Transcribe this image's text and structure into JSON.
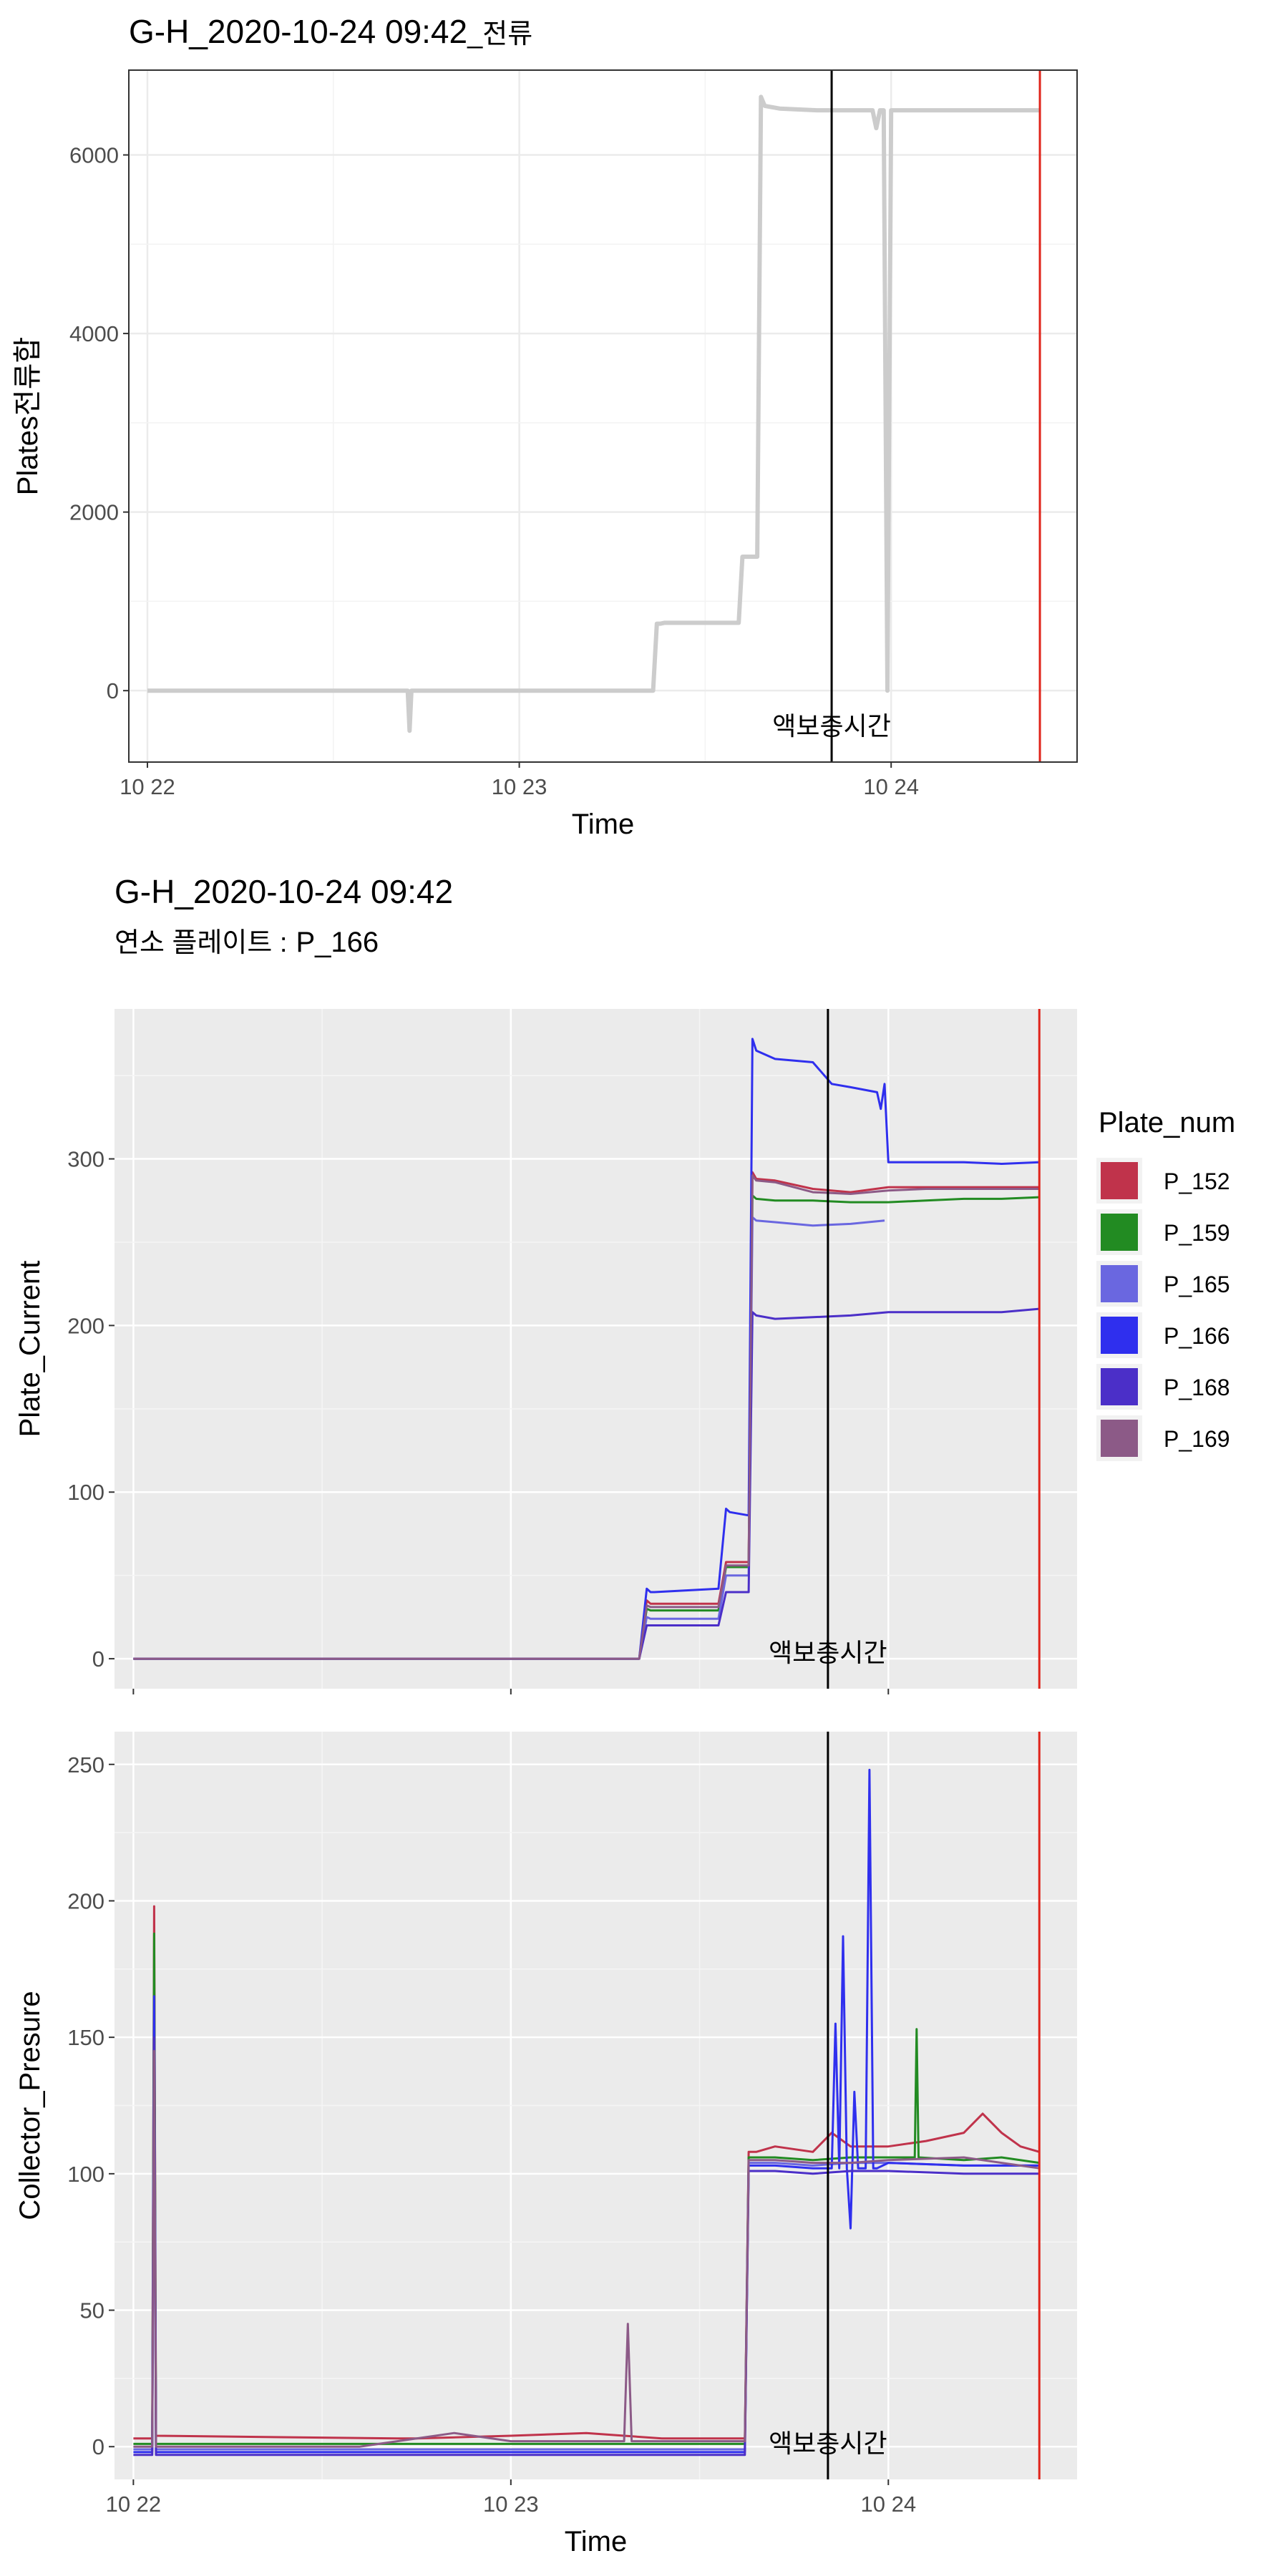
{
  "top_title": {
    "main": "G-H_2020-10-24 09:42",
    "suffix": "_전류"
  },
  "bottom_title": "G-H_2020-10-24 09:42",
  "subtitle": {
    "label": "연소 플레이트 :",
    "value": "P_166"
  },
  "legend": {
    "title": "Plate_num",
    "items": [
      {
        "name": "P_152",
        "color": "#C0334B"
      },
      {
        "name": "P_159",
        "color": "#228B22"
      },
      {
        "name": "P_165",
        "color": "#6A67E0"
      },
      {
        "name": "P_166",
        "color": "#2F2FEE"
      },
      {
        "name": "P_168",
        "color": "#4B2FC8"
      },
      {
        "name": "P_169",
        "color": "#8C5A87"
      }
    ]
  },
  "vline_colors": {
    "marker": "#000000",
    "current": "#E0241B"
  },
  "chart_data": [
    {
      "type": "line",
      "title": "G-H_2020-10-24 09:42_전류",
      "xlabel": "Time",
      "ylabel": "Plates전류합",
      "x_ticks": [
        "10 22",
        "10 23",
        "10 24"
      ],
      "y_ticks": [
        "0",
        "2000",
        "4000",
        "6000"
      ],
      "xlim": [
        -0.05,
        2.5
      ],
      "ylim": [
        -800,
        6950
      ],
      "background": "white",
      "grid": true,
      "series": [
        {
          "color": "#CCCCCC",
          "x": [
            0.0,
            0.7,
            0.705,
            0.71,
            0.715,
            1.36,
            1.37,
            1.38,
            1.39,
            1.59,
            1.6,
            1.61,
            1.64,
            1.65,
            1.66,
            1.7,
            1.8,
            1.85,
            1.9,
            1.95,
            1.96,
            1.97,
            1.975,
            1.98,
            1.99,
            2.0,
            2.05,
            2.1,
            2.15,
            2.2,
            2.3,
            2.4
          ],
          "y": [
            0,
            0,
            -450,
            0,
            0,
            0,
            750,
            750,
            760,
            760,
            1500,
            1500,
            1500,
            6650,
            6550,
            6520,
            6500,
            6500,
            6500,
            6500,
            6300,
            6500,
            6500,
            6500,
            0,
            6500,
            6500,
            6500,
            6500,
            6500,
            6500,
            6500
          ]
        }
      ],
      "vlines": [
        {
          "x": 1.84,
          "label": "액보충시간",
          "color": "#000000"
        },
        {
          "x": 2.4,
          "color": "#E0241B"
        }
      ]
    },
    {
      "type": "line",
      "xlabel": "",
      "ylabel": "Plate_Current",
      "x_ticks": [],
      "y_ticks": [
        "0",
        "100",
        "200",
        "300"
      ],
      "xlim": [
        -0.05,
        2.5
      ],
      "ylim": [
        -18,
        390
      ],
      "background": "grey92",
      "grid": true,
      "legend_position": "right",
      "series": [
        {
          "name": "P_152",
          "x": [
            0,
            1.34,
            1.36,
            1.37,
            1.38,
            1.55,
            1.57,
            1.58,
            1.63,
            1.64,
            1.65,
            1.7,
            1.8,
            1.9,
            2.0,
            2.1,
            2.2,
            2.3,
            2.4
          ],
          "y": [
            0,
            0,
            35,
            33,
            33,
            33,
            58,
            58,
            58,
            292,
            288,
            287,
            282,
            280,
            283,
            283,
            283,
            283,
            283
          ]
        },
        {
          "name": "P_159",
          "x": [
            0,
            1.34,
            1.36,
            1.37,
            1.38,
            1.55,
            1.57,
            1.58,
            1.63,
            1.64,
            1.65,
            1.7,
            1.8,
            1.9,
            2.0,
            2.1,
            2.2,
            2.3,
            2.4
          ],
          "y": [
            0,
            0,
            30,
            29,
            29,
            29,
            55,
            55,
            55,
            278,
            276,
            275,
            275,
            274,
            274,
            275,
            276,
            276,
            277
          ]
        },
        {
          "name": "P_165",
          "x": [
            0,
            1.34,
            1.36,
            1.37,
            1.38,
            1.55,
            1.57,
            1.58,
            1.63,
            1.64,
            1.65,
            1.7,
            1.8,
            1.9,
            1.99
          ],
          "y": [
            0,
            0,
            25,
            24,
            24,
            24,
            50,
            50,
            50,
            265,
            263,
            262,
            260,
            261,
            263
          ]
        },
        {
          "name": "P_166",
          "x": [
            0,
            1.34,
            1.36,
            1.37,
            1.38,
            1.55,
            1.57,
            1.58,
            1.63,
            1.64,
            1.65,
            1.7,
            1.8,
            1.85,
            1.9,
            1.97,
            1.98,
            1.99,
            2.0,
            2.1,
            2.2,
            2.3,
            2.4
          ],
          "y": [
            0,
            0,
            42,
            40,
            40,
            42,
            90,
            88,
            86,
            372,
            365,
            360,
            358,
            345,
            343,
            340,
            330,
            345,
            298,
            298,
            298,
            297,
            298
          ]
        },
        {
          "name": "P_168",
          "x": [
            0,
            1.34,
            1.36,
            1.37,
            1.38,
            1.55,
            1.57,
            1.58,
            1.63,
            1.64,
            1.65,
            1.7,
            1.8,
            1.9,
            2.0,
            2.1,
            2.2,
            2.3,
            2.4
          ],
          "y": [
            0,
            0,
            20,
            20,
            20,
            20,
            40,
            40,
            40,
            208,
            206,
            204,
            205,
            206,
            208,
            208,
            208,
            208,
            210
          ]
        },
        {
          "name": "P_169",
          "x": [
            0,
            1.34,
            1.36,
            1.37,
            1.38,
            1.55,
            1.57,
            1.58,
            1.63,
            1.64,
            1.65,
            1.7,
            1.8,
            1.9,
            2.0,
            2.1,
            2.2,
            2.3,
            2.4
          ],
          "y": [
            0,
            0,
            32,
            31,
            31,
            31,
            56,
            56,
            56,
            290,
            287,
            286,
            280,
            279,
            281,
            282,
            282,
            282,
            282
          ]
        }
      ],
      "vlines": [
        {
          "x": 1.84,
          "label": "액보충시간",
          "color": "#000000"
        },
        {
          "x": 2.4,
          "color": "#E0241B"
        }
      ]
    },
    {
      "type": "line",
      "xlabel": "Time",
      "ylabel": "Collector_Presure",
      "x_ticks": [
        "10 22",
        "10 23",
        "10 24"
      ],
      "y_ticks": [
        "0",
        "50",
        "100",
        "150",
        "200",
        "250"
      ],
      "xlim": [
        -0.05,
        2.5
      ],
      "ylim": [
        -12,
        262
      ],
      "background": "grey92",
      "grid": true,
      "series": [
        {
          "name": "P_152",
          "x": [
            0,
            0.05,
            0.055,
            0.06,
            0.7,
            0.75,
            1.0,
            1.2,
            1.3,
            1.4,
            1.5,
            1.62,
            1.63,
            1.65,
            1.7,
            1.8,
            1.85,
            1.9,
            2.0,
            2.1,
            2.2,
            2.25,
            2.3,
            2.35,
            2.4
          ],
          "y": [
            3,
            3,
            198,
            4,
            3,
            3,
            4,
            5,
            4,
            3,
            3,
            3,
            108,
            108,
            110,
            108,
            115,
            110,
            110,
            112,
            115,
            122,
            115,
            110,
            108
          ]
        },
        {
          "name": "P_159",
          "x": [
            0,
            0.05,
            0.055,
            0.06,
            1.0,
            1.5,
            1.62,
            1.63,
            1.7,
            1.8,
            1.9,
            2.0,
            2.07,
            2.075,
            2.08,
            2.2,
            2.3,
            2.4
          ],
          "y": [
            1,
            1,
            188,
            1,
            1,
            1,
            1,
            106,
            106,
            105,
            106,
            106,
            106,
            153,
            106,
            105,
            106,
            104
          ]
        },
        {
          "name": "P_165",
          "x": [
            0,
            0.05,
            0.055,
            0.06,
            1.0,
            1.5,
            1.62,
            1.63,
            1.7,
            1.8,
            1.9,
            2.0,
            2.2,
            2.4
          ],
          "y": [
            -1,
            -1,
            160,
            -1,
            -1,
            -1,
            -1,
            104,
            104,
            103,
            104,
            104,
            103,
            103
          ]
        },
        {
          "name": "P_166",
          "x": [
            0,
            0.05,
            0.055,
            0.06,
            1.0,
            1.5,
            1.62,
            1.63,
            1.7,
            1.8,
            1.85,
            1.86,
            1.87,
            1.88,
            1.89,
            1.9,
            1.91,
            1.92,
            1.93,
            1.94,
            1.95,
            1.96,
            1.97,
            2.0,
            2.2,
            2.4
          ],
          "y": [
            -2,
            -2,
            165,
            -2,
            -2,
            -2,
            -2,
            103,
            103,
            102,
            102,
            155,
            102,
            187,
            102,
            80,
            130,
            102,
            102,
            102,
            248,
            102,
            102,
            104,
            103,
            103
          ]
        },
        {
          "name": "P_168",
          "x": [
            0,
            0.05,
            0.055,
            0.06,
            1.0,
            1.5,
            1.62,
            1.63,
            1.7,
            1.8,
            1.9,
            2.0,
            2.2,
            2.4
          ],
          "y": [
            -3,
            -3,
            150,
            -3,
            -3,
            -3,
            -3,
            101,
            101,
            100,
            101,
            101,
            100,
            100
          ]
        },
        {
          "name": "P_169",
          "x": [
            0,
            0.05,
            0.055,
            0.06,
            0.6,
            0.85,
            1.0,
            1.3,
            1.31,
            1.32,
            1.5,
            1.62,
            1.63,
            1.7,
            1.8,
            1.9,
            2.0,
            2.2,
            2.3,
            2.4
          ],
          "y": [
            0,
            0,
            145,
            0,
            0,
            5,
            2,
            2,
            45,
            2,
            2,
            2,
            105,
            105,
            104,
            104,
            105,
            106,
            104,
            102
          ]
        }
      ],
      "vlines": [
        {
          "x": 1.84,
          "label": "액보충시간",
          "color": "#000000"
        },
        {
          "x": 2.4,
          "color": "#E0241B"
        }
      ]
    }
  ]
}
